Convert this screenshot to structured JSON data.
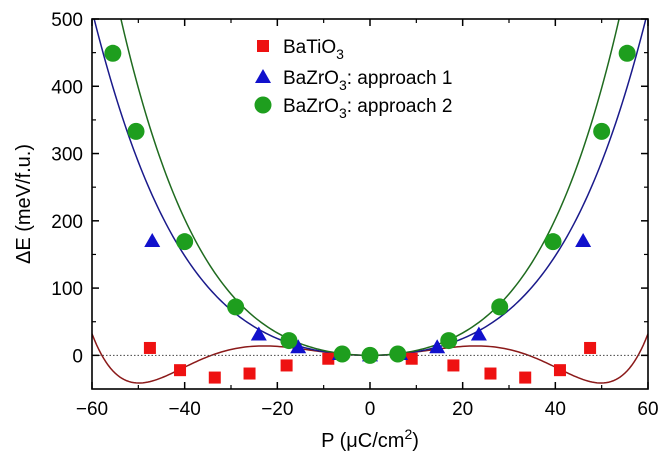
{
  "chart_data": {
    "type": "scatter",
    "title": "",
    "xlabel": {
      "text": "P (",
      "mu": "μ",
      "unit": "C/cm",
      "sup": "2",
      "close": ")"
    },
    "ylabel": "ΔE (meV/f.u.)",
    "xlim": [
      -60,
      60
    ],
    "ylim": [
      -50,
      500
    ],
    "xticks": [
      -60,
      -40,
      -20,
      0,
      20,
      40,
      60
    ],
    "yticks": [
      0,
      100,
      200,
      300,
      400,
      500
    ],
    "xtick_labels": [
      "−60",
      "−40",
      "−20",
      "0",
      "20",
      "40",
      "60"
    ],
    "ytick_labels": [
      "0",
      "100",
      "200",
      "300",
      "400",
      "500"
    ],
    "zero_line": "dotted",
    "grid": false,
    "legend_position": "top-center",
    "series": [
      {
        "name": {
          "base": "BaTiO",
          "sub": "3",
          "rest": ""
        },
        "marker": "square",
        "color": "#ee1111",
        "fit_color": "#8b1a1a",
        "x": [
          -47.5,
          -41,
          -33.5,
          -26,
          -18,
          -9,
          0,
          9,
          18,
          26,
          33.5,
          41,
          47.5
        ],
        "y": [
          11,
          -22,
          -33,
          -27,
          -15,
          -5,
          0,
          -5,
          -15,
          -27,
          -33,
          -22,
          11
        ],
        "fit": {
          "form": "a2P^2+a4P^4+a6P^6",
          "a2": 0.0573,
          "a4": -6.6e-05,
          "a6": 1.46e-08
        }
      },
      {
        "name": {
          "base": "BaZrO",
          "sub": "3",
          "rest": ": approach 1"
        },
        "marker": "triangle",
        "color": "#1111cc",
        "fit_color": "#1a1a8b",
        "x": [
          -47,
          -24,
          -15.5,
          -6.5,
          0,
          6.5,
          14.5,
          23.5,
          46
        ],
        "y": [
          170,
          31,
          12,
          2,
          0,
          2,
          12,
          31,
          170
        ],
        "fit": {
          "form": "a2P^2+a4P^4",
          "a2": 0.0525,
          "a4": 2.5e-05
        }
      },
      {
        "name": {
          "base": "BaZrO",
          "sub": "3",
          "rest": ": approach 2"
        },
        "marker": "circle",
        "color": "#1e9e1e",
        "fit_color": "#1f6b1f",
        "x": [
          -55.5,
          -50.5,
          -40,
          -29,
          -17.5,
          -6,
          0,
          6,
          17,
          28,
          39.5,
          50,
          55.5
        ],
        "y": [
          449,
          333,
          169,
          72,
          22,
          2,
          0,
          2,
          22,
          72,
          169,
          333,
          449
        ],
        "fit": {
          "form": "a2P^2+a4P^4",
          "a2": 0.069,
          "a4": 3.6e-05
        }
      }
    ]
  }
}
